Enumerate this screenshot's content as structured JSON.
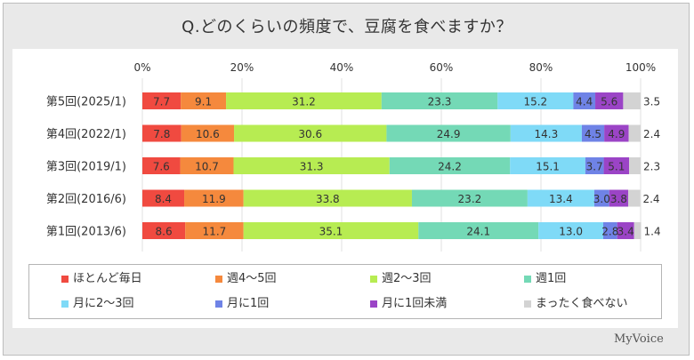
{
  "title": "Q.どのくらいの頻度で、豆腐を食べますか？",
  "brand": "MyVoice",
  "chart_data": {
    "type": "bar",
    "orientation": "horizontal",
    "stacked": true,
    "percent_scale": true,
    "xlim": [
      0,
      100
    ],
    "xtick_labels": [
      "0%",
      "20%",
      "40%",
      "60%",
      "80%",
      "100%"
    ],
    "grid": true,
    "legend_position": "bottom",
    "categories": [
      "第5回(2025/1)",
      "第4回(2022/1)",
      "第3回(2019/1)",
      "第2回(2016/6)",
      "第1回(2013/6)"
    ],
    "series": [
      {
        "name": "ほとんど毎日",
        "color": "#f04a40",
        "values": [
          7.7,
          7.8,
          7.6,
          8.4,
          8.6
        ],
        "labels": [
          "7.7",
          "7.8",
          "7.6",
          "8.4",
          "8.6"
        ]
      },
      {
        "name": "週4～5回",
        "color": "#f5893d",
        "values": [
          9.1,
          10.6,
          10.7,
          11.9,
          11.7
        ],
        "labels": [
          "9.1",
          "10.6",
          "10.7",
          "11.9",
          "11.7"
        ]
      },
      {
        "name": "週2～3回",
        "color": "#b7ec52",
        "values": [
          31.2,
          30.6,
          31.3,
          33.8,
          35.1
        ],
        "labels": [
          "31.2",
          "30.6",
          "31.3",
          "33.8",
          "35.1"
        ]
      },
      {
        "name": "週1回",
        "color": "#74d9b6",
        "values": [
          23.3,
          24.9,
          24.2,
          23.2,
          24.1
        ],
        "labels": [
          "23.3",
          "24.9",
          "24.2",
          "23.2",
          "24.1"
        ]
      },
      {
        "name": "月に2～3回",
        "color": "#7fdaf7",
        "values": [
          15.2,
          14.3,
          15.1,
          13.4,
          13.0
        ],
        "labels": [
          "15.2",
          "14.3",
          "15.1",
          "13.4",
          "13.0"
        ]
      },
      {
        "name": "月に1回",
        "color": "#6f83e6",
        "values": [
          4.4,
          4.5,
          3.7,
          3.0,
          2.8
        ],
        "labels": [
          "4.4",
          "4.5",
          "3.7",
          "3.0",
          "2.8"
        ]
      },
      {
        "name": "月に1回未満",
        "color": "#9b44c6",
        "values": [
          5.6,
          4.9,
          5.1,
          3.8,
          3.4
        ],
        "labels": [
          "5.6",
          "4.9",
          "5.1",
          "3.8",
          "3.4"
        ]
      },
      {
        "name": "まったく食べない",
        "color": "#d3d3d3",
        "values": [
          3.5,
          2.4,
          2.3,
          2.4,
          1.4
        ],
        "labels": [
          "3.5",
          "2.4",
          "2.3",
          "2.4",
          "1.4"
        ]
      }
    ]
  }
}
